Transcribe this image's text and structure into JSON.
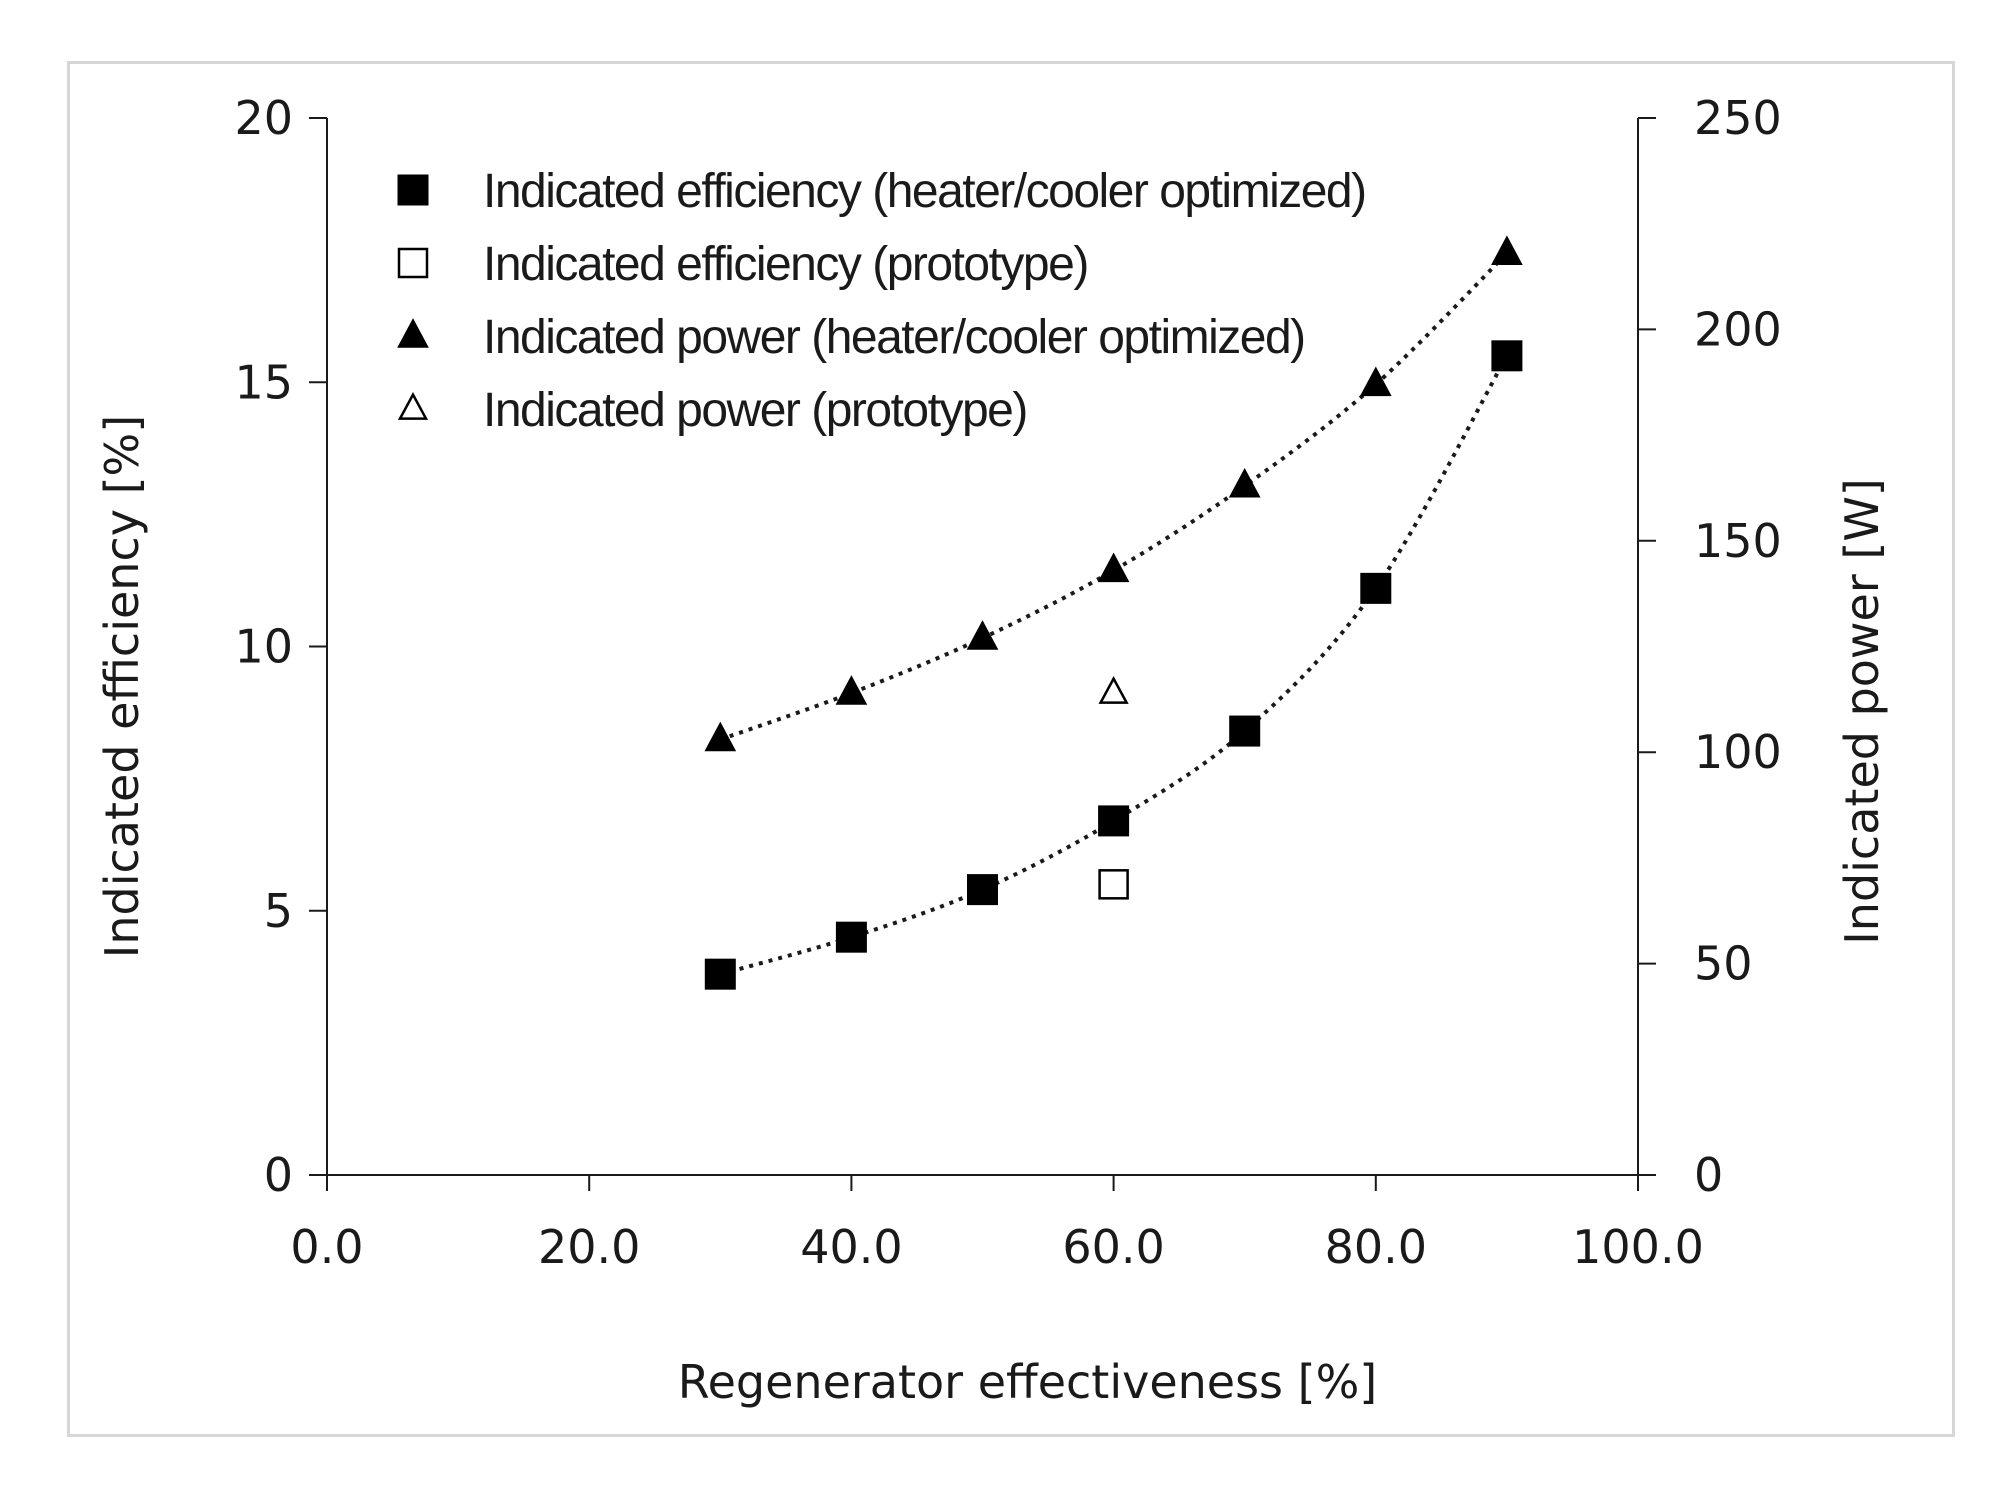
{
  "chart_data": {
    "type": "scatter",
    "title": "",
    "xlabel": "Regenerator effectiveness [%]",
    "ylabel": "Indicated efficiency [%]",
    "y2label": "Indicated power [W]",
    "xlim": [
      0,
      100
    ],
    "ylim": [
      0,
      20
    ],
    "y2lim": [
      0,
      250
    ],
    "xticks": [
      "0.0",
      "20.0",
      "40.0",
      "60.0",
      "80.0",
      "100.0"
    ],
    "yticks": [
      "0",
      "5",
      "10",
      "15",
      "20"
    ],
    "y2ticks": [
      "0",
      "50",
      "100",
      "150",
      "200",
      "250"
    ],
    "grid": false,
    "legend_position": "top-left",
    "series": [
      {
        "name": "Indicated efficiency (heater/cooler optimized)",
        "axis": "left",
        "marker": "square-filled",
        "trendline": "dotted",
        "x": [
          30,
          40,
          50,
          60,
          70,
          80,
          90
        ],
        "y": [
          3.8,
          4.5,
          5.4,
          6.7,
          8.4,
          11.1,
          15.5
        ]
      },
      {
        "name": "Indicated efficiency (prototype)",
        "axis": "left",
        "marker": "square-open",
        "trendline": "none",
        "x": [
          60
        ],
        "y": [
          5.5
        ]
      },
      {
        "name": "Indicated power (heater/cooler optimized)",
        "axis": "right",
        "marker": "triangle-filled",
        "trendline": "dotted",
        "x": [
          30,
          40,
          50,
          60,
          70,
          80,
          90
        ],
        "y": [
          103,
          114,
          127,
          143,
          163,
          187,
          218
        ]
      },
      {
        "name": "Indicated power (prototype)",
        "axis": "right",
        "marker": "triangle-open",
        "trendline": "none",
        "x": [
          60
        ],
        "y": [
          114
        ]
      }
    ]
  }
}
